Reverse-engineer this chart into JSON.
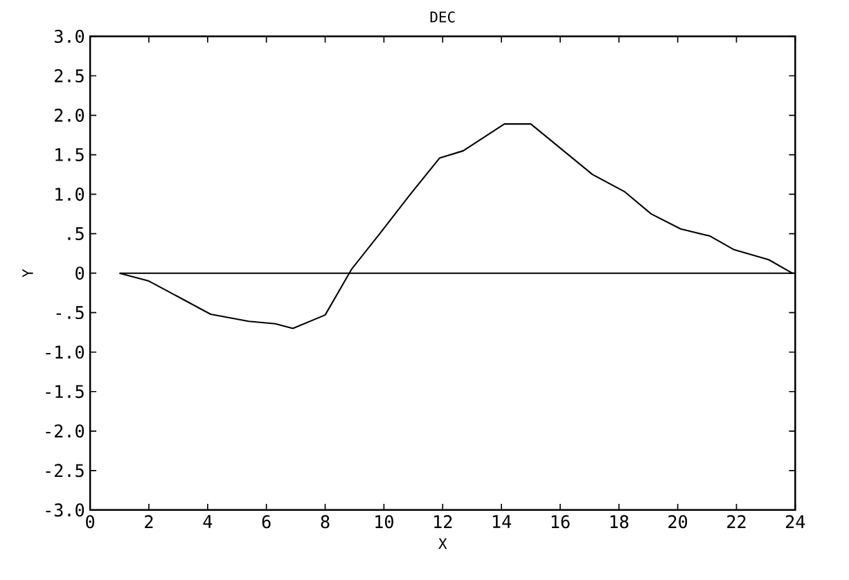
{
  "chart_data": {
    "type": "line",
    "title": "DEC",
    "xlabel": "X",
    "ylabel": "Y",
    "xlim": [
      0,
      24
    ],
    "xticks": [
      0,
      2,
      4,
      6,
      8,
      10,
      12,
      14,
      16,
      18,
      20,
      22,
      24
    ],
    "ylim": [
      -3.0,
      3.0
    ],
    "yticks": [
      {
        "value": 3.0,
        "label": "3.0"
      },
      {
        "value": 2.5,
        "label": "2.5"
      },
      {
        "value": 2.0,
        "label": "2.0"
      },
      {
        "value": 1.5,
        "label": "1.5"
      },
      {
        "value": 1.0,
        "label": "1.0"
      },
      {
        "value": 0.5,
        "label": ".5"
      },
      {
        "value": 0,
        "label": "0"
      },
      {
        "value": -0.5,
        "label": "-.5"
      },
      {
        "value": -1.0,
        "label": "-1.0"
      },
      {
        "value": -1.5,
        "label": "-1.5"
      },
      {
        "value": -2.0,
        "label": "-2.0"
      },
      {
        "value": -2.5,
        "label": "-2.5"
      },
      {
        "value": -3.0,
        "label": "-3.0"
      }
    ],
    "series": [
      {
        "color": "#000000",
        "x": [
          1.0,
          2.0,
          4.1,
          5.4,
          6.3,
          6.9,
          8.0,
          8.9,
          9.9,
          10.9,
          11.9,
          12.7,
          14.1,
          15.0,
          17.1,
          18.2,
          19.1,
          20.1,
          21.1,
          21.9,
          23.1,
          23.9
        ],
        "values": [
          0,
          -0.1,
          -0.52,
          -0.61,
          -0.64,
          -0.7,
          -0.53,
          0.05,
          0.52,
          1.0,
          1.46,
          1.55,
          1.89,
          1.89,
          1.25,
          1.03,
          0.75,
          0.56,
          0.47,
          0.3,
          0.17,
          0
        ]
      },
      {
        "color": "#000000",
        "x": [
          1.0,
          24.0
        ],
        "values": [
          0,
          0
        ]
      }
    ],
    "grid": false,
    "line_style": "solid",
    "marker": "none"
  }
}
